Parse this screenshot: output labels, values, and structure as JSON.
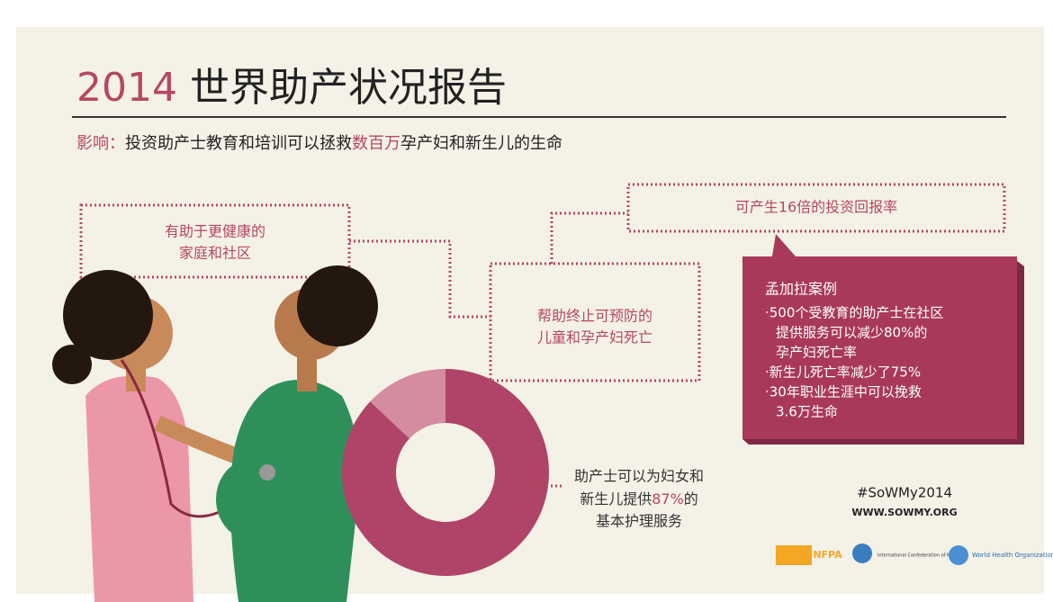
{
  "header": {
    "year": "2014",
    "title": "世界助产状况报告",
    "subtitle": {
      "lead": "影响：",
      "part1": "投资助产士教育和培训可以拯救",
      "highlight": "数百万",
      "part2": "孕产妇和新生儿的生命"
    }
  },
  "callouts": [
    {
      "lines": [
        "有助于更健康的",
        "家庭和社区"
      ]
    },
    {
      "lines": [
        "帮助终止可预防的",
        "儿童和孕产妇死亡"
      ]
    }
  ],
  "return_box": "可产生16倍的投资回报率",
  "case": {
    "title": "孟加拉案例",
    "lines": [
      "·500个受教育的助产士在社区",
      "提供服务可以减少80%的",
      "孕产妇死亡率",
      "·新生儿死亡率减少了75%",
      "·30年职业生涯中可以挽救",
      "3.6万生命"
    ]
  },
  "donut": {
    "value": 87,
    "label": "87%",
    "line1": "助产士可以为妇女和",
    "line2_before": "新生儿提供",
    "line2_after": "的",
    "line3": "基本护理服务"
  },
  "footer": {
    "hashtag": "#SoWMy2014",
    "url": "WWW.SOWMY.ORG",
    "logos": [
      "UNFPA",
      "International Confederation of Midwives",
      "World Health Organization"
    ]
  }
}
